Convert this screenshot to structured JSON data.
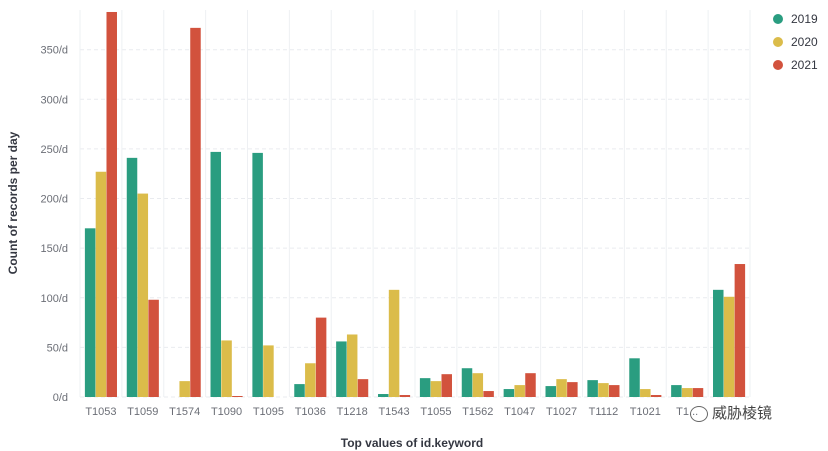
{
  "chart_data": {
    "type": "bar",
    "xlabel": "Top values of id.keyword",
    "ylabel": "Count of records per day",
    "ylim": [
      0,
      390
    ],
    "y_ticks": [
      "0/d",
      "50/d",
      "100/d",
      "150/d",
      "200/d",
      "250/d",
      "300/d",
      "350/d"
    ],
    "grid": true,
    "legend_position": "top-right",
    "categories": [
      "T1053",
      "T1059",
      "T1574",
      "T1090",
      "T1095",
      "T1036",
      "T1218",
      "T1543",
      "T1055",
      "T1562",
      "T1047",
      "T1027",
      "T1112",
      "T1021",
      "T1...",
      ""
    ],
    "series": [
      {
        "name": "2019",
        "color": "#2a9d80",
        "values": [
          170,
          241,
          0,
          247,
          246,
          13,
          56,
          3,
          19,
          29,
          8,
          11,
          17,
          39,
          12,
          108
        ]
      },
      {
        "name": "2020",
        "color": "#dbbc4a",
        "values": [
          227,
          205,
          16,
          57,
          52,
          34,
          63,
          108,
          16,
          24,
          12,
          18,
          14,
          8,
          9,
          101
        ]
      },
      {
        "name": "2021",
        "color": "#d2523d",
        "values": [
          388,
          98,
          372,
          1,
          0,
          80,
          18,
          2,
          23,
          6,
          24,
          15,
          12,
          2,
          9,
          134
        ]
      }
    ]
  },
  "watermark": "威胁棱镜"
}
